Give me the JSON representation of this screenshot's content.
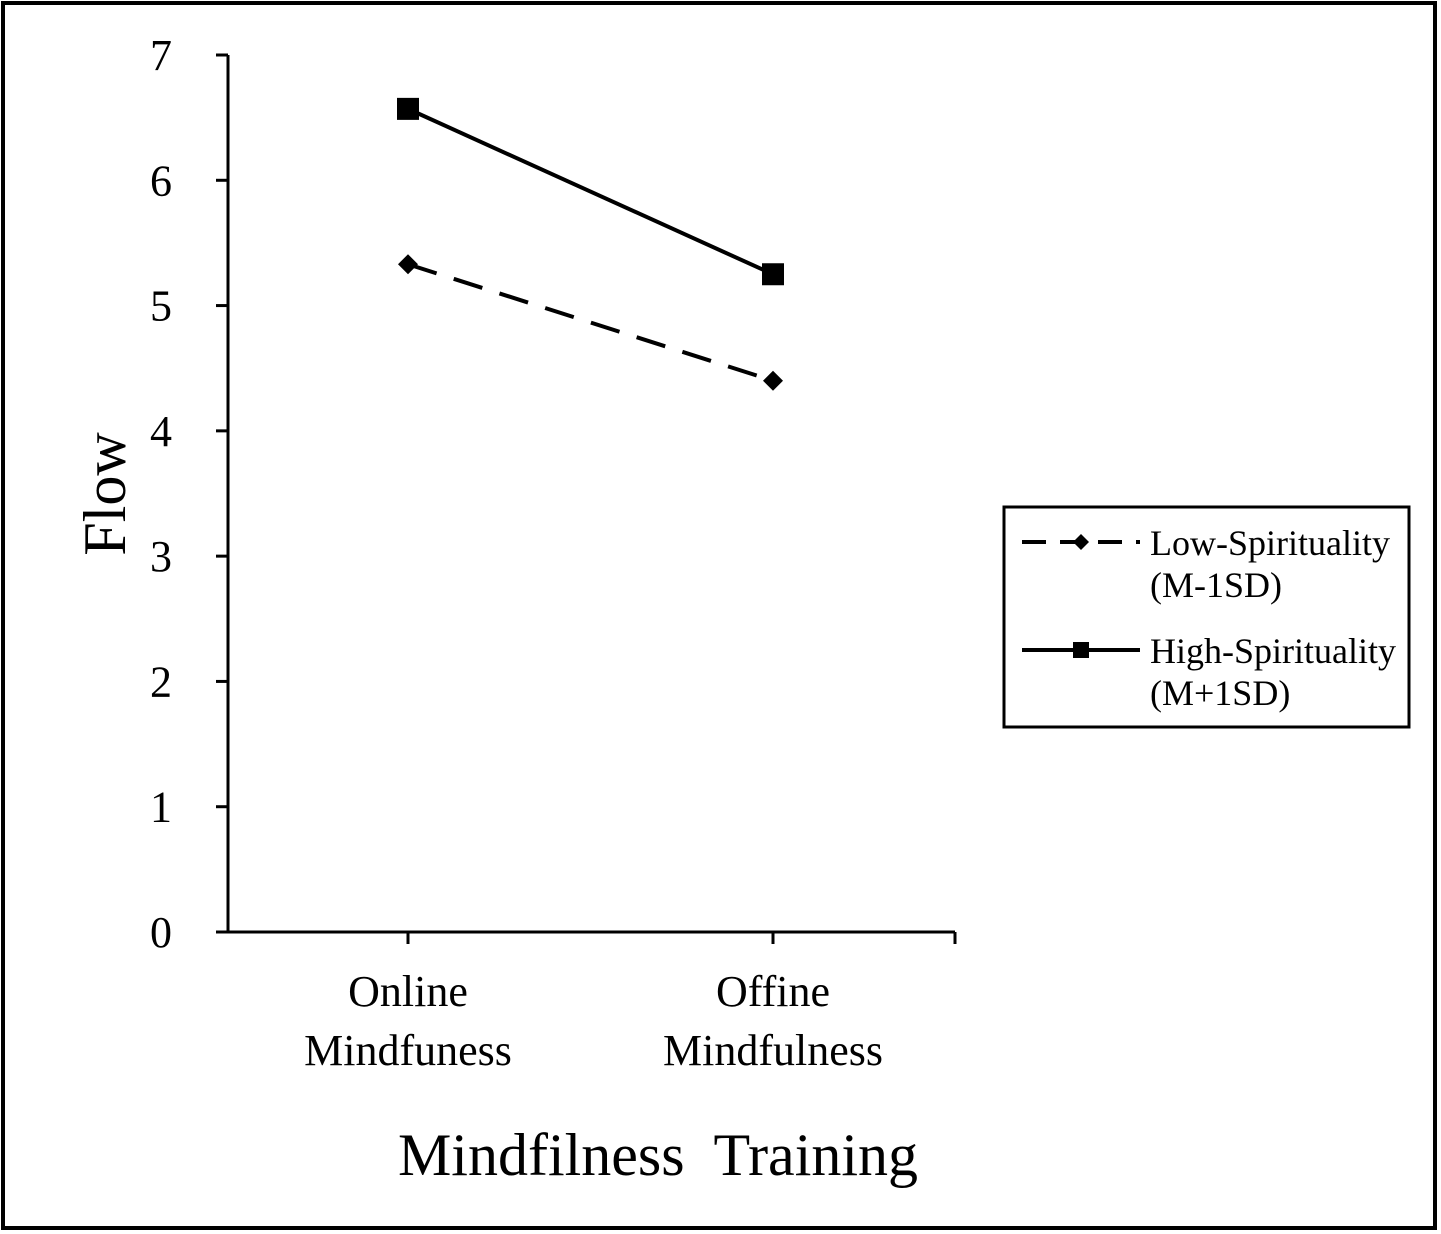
{
  "chart_data": {
    "type": "line",
    "categories": [
      "Online Mindfuness",
      "Offine Mindfulness"
    ],
    "category_lines": [
      [
        "Online",
        "Mindfuness"
      ],
      [
        "Offine",
        "Mindfulness"
      ]
    ],
    "series": [
      {
        "name": "Low-Spirituality (M-1SD)",
        "legend_lines": [
          "Low-Spirituality",
          "(M-1SD)"
        ],
        "values": [
          5.33,
          4.4
        ],
        "line_style": "dashed",
        "marker": "diamond",
        "color": "#000000"
      },
      {
        "name": "High-Spirituality (M+1SD)",
        "legend_lines": [
          "High-Spirituality",
          "(M+1SD)"
        ],
        "values": [
          6.57,
          5.25
        ],
        "line_style": "solid",
        "marker": "square",
        "color": "#000000"
      }
    ],
    "xlabel": "Mindfilness  Training",
    "ylabel": "Flow",
    "ylim": [
      0,
      7
    ],
    "yticks": [
      "0",
      "1",
      "2",
      "3",
      "4",
      "5",
      "6",
      "7"
    ],
    "grid": false,
    "legend_position": "right"
  }
}
